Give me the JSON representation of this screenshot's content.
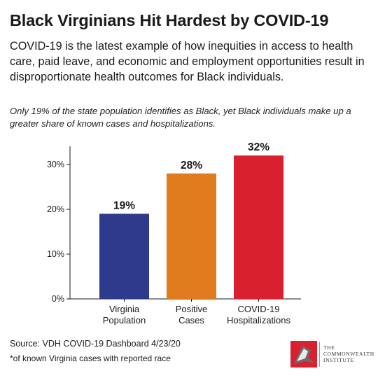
{
  "header": {
    "title": "Black Virginians Hit Hardest by COVID-19",
    "lede": "COVID-19 is the latest example of how inequities in access to health care, paid leave, and economic and employment opportunities result in disproportionate health outcomes for Black individuals.",
    "note": "Only 19% of the state population identifies as Black, yet Black individuals make up a greater share of known cases and hospitalizations."
  },
  "chart_data": {
    "type": "bar",
    "categories": [
      [
        "Virginia",
        "Population"
      ],
      [
        "Positive",
        "Cases"
      ],
      [
        "COVID-19",
        "Hospitalizations"
      ]
    ],
    "values": [
      19,
      28,
      32
    ],
    "value_labels": [
      "19%",
      "28%",
      "32%"
    ],
    "colors": [
      "#2e3a8c",
      "#e07b1e",
      "#d9202e"
    ],
    "yticks": [
      0,
      10,
      20,
      30
    ],
    "ytick_labels": [
      "0%",
      "10%",
      "20%",
      "30%"
    ],
    "ylim": [
      0,
      35
    ],
    "grid": false
  },
  "footer": {
    "source": "Source: VDH COVID-19 Dashboard 4/23/20",
    "footnote": "*of known Virginia cases with reported race",
    "logo_lines": [
      "The",
      "Commonwealth",
      "Institute"
    ],
    "logo_colors": [
      "#d9202e",
      "#6b6b6b"
    ]
  }
}
